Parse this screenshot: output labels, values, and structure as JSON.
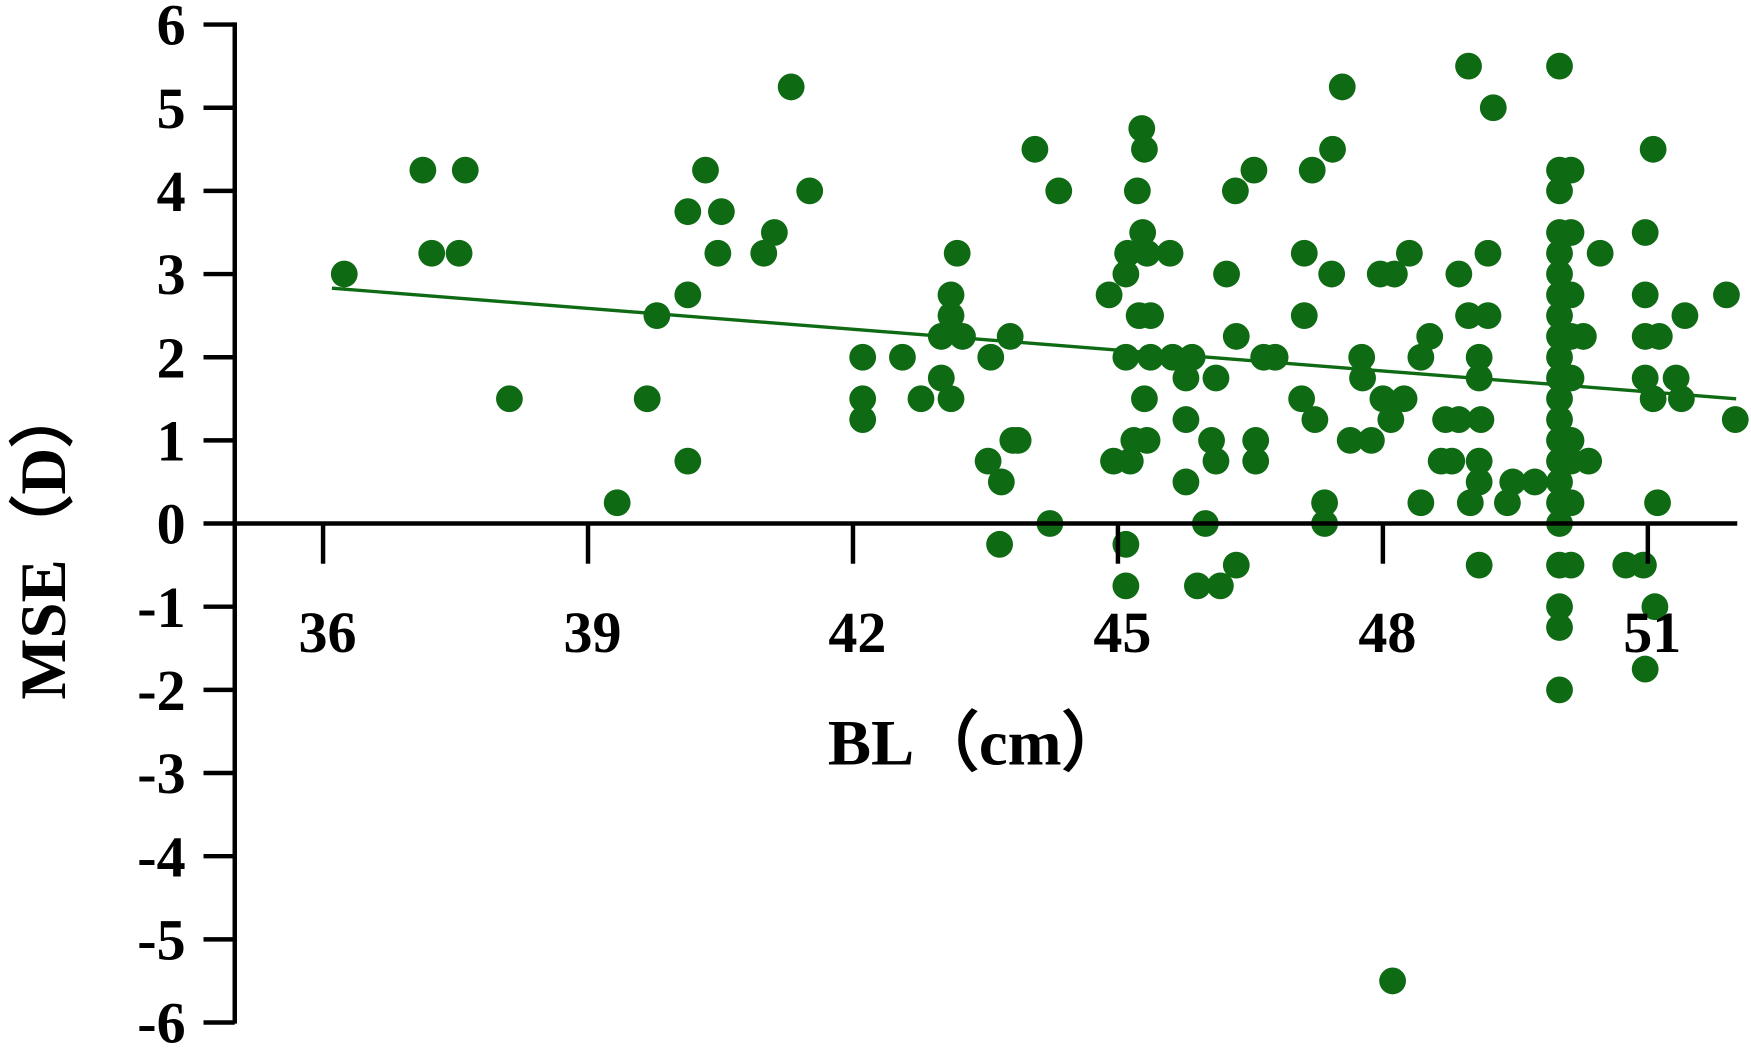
{
  "chart_data": {
    "type": "scatter",
    "x_label": "BL（cm）",
    "y_label": "MSE（D）",
    "xlim": [
      35,
      52
    ],
    "ylim": [
      -6,
      6
    ],
    "xticks": [
      36,
      39,
      42,
      45,
      48,
      51
    ],
    "yticks": [
      6,
      5,
      4,
      3,
      2,
      1,
      0,
      -1,
      -2,
      -3,
      -4,
      -5,
      -6
    ],
    "series": [
      {
        "mode": "markers",
        "color": "#0f6a14",
        "x": [
          36.24,
          37.13,
          37.23,
          37.54,
          37.61,
          38.11,
          39.33,
          39.67,
          39.78,
          40.13,
          40.13,
          40.13,
          40.33,
          40.47,
          40.51,
          40.99,
          41.11,
          41.3,
          41.51,
          42.11,
          42.11,
          42.11,
          42.56,
          42.77,
          43.0,
          43.0,
          43.11,
          43.11,
          43.11,
          43.18,
          43.24,
          43.56,
          43.66,
          43.53,
          43.68,
          43.78,
          43.81,
          43.87,
          44.06,
          44.23,
          44.33,
          44.9,
          44.95,
          45.09,
          45.09,
          45.09,
          45.11,
          45.14,
          45.18,
          45.09,
          45.22,
          45.27,
          45.3,
          45.28,
          45.33,
          45.24,
          45.37,
          45.3,
          45.33,
          45.37,
          45.59,
          45.62,
          45.77,
          45.77,
          45.77,
          45.84,
          45.9,
          45.99,
          46.06,
          46.11,
          46.11,
          46.16,
          46.23,
          46.33,
          46.34,
          46.34,
          46.54,
          46.56,
          46.56,
          46.65,
          46.78,
          47.08,
          47.11,
          47.11,
          47.2,
          47.23,
          47.34,
          47.34,
          47.43,
          47.42,
          47.54,
          47.63,
          47.76,
          47.77,
          47.87,
          47.97,
          48.0,
          48.09,
          48.13,
          48.11,
          48.24,
          48.3,
          48.43,
          48.43,
          48.53,
          48.66,
          48.71,
          48.78,
          48.86,
          48.86,
          48.97,
          48.97,
          48.99,
          49.09,
          49.09,
          49.11,
          49.09,
          49.09,
          49.09,
          49.19,
          49.19,
          49.25,
          49.41,
          49.47,
          49.72,
          50.0,
          50.0,
          50.0,
          50.0,
          50.0,
          50.0,
          50.0,
          50.0,
          50.0,
          50.0,
          50.0,
          50.0,
          50.0,
          50.0,
          50.0,
          50.0,
          50.0,
          50.0,
          50.0,
          50.0,
          50.0,
          50.0,
          50.13,
          50.13,
          50.13,
          50.13,
          50.13,
          50.13,
          50.13,
          50.13,
          50.13,
          50.27,
          50.33,
          50.46,
          50.75,
          50.95,
          50.97,
          50.97,
          50.97,
          50.97,
          50.97,
          51.06,
          51.06,
          51.11,
          51.08,
          51.13,
          51.32,
          51.38,
          51.42,
          51.89,
          51.99
        ],
        "values": [
          3.0,
          4.25,
          3.25,
          3.25,
          4.25,
          1.5,
          0.25,
          1.5,
          2.5,
          0.75,
          2.75,
          3.75,
          4.25,
          3.25,
          3.75,
          3.25,
          3.5,
          5.25,
          4.0,
          2.0,
          1.5,
          1.25,
          2.0,
          1.5,
          1.75,
          2.25,
          2.75,
          2.5,
          1.5,
          3.25,
          2.25,
          2.0,
          -0.25,
          0.75,
          0.5,
          2.25,
          1.0,
          1.0,
          4.5,
          0.0,
          4.0,
          2.75,
          0.75,
          -0.25,
          -0.75,
          3.0,
          3.25,
          0.75,
          1.0,
          2.0,
          4.0,
          4.75,
          4.5,
          3.5,
          3.25,
          2.5,
          2.5,
          1.5,
          1.0,
          2.0,
          3.25,
          2.0,
          1.75,
          1.25,
          0.5,
          2.0,
          -0.75,
          0.0,
          1.0,
          1.75,
          0.75,
          -0.75,
          3.0,
          4.0,
          2.25,
          -0.5,
          4.25,
          1.0,
          0.75,
          2.0,
          2.0,
          1.5,
          2.5,
          3.25,
          4.25,
          1.25,
          0.25,
          0.0,
          4.5,
          3.0,
          5.25,
          1.0,
          2.0,
          1.75,
          1.0,
          3.0,
          1.5,
          1.25,
          3.0,
          -5.5,
          1.5,
          3.25,
          2.0,
          0.25,
          2.25,
          0.75,
          1.25,
          0.75,
          3.0,
          1.25,
          5.5,
          2.5,
          0.25,
          2.0,
          1.75,
          1.25,
          0.75,
          0.5,
          -0.5,
          3.25,
          2.5,
          5.0,
          0.25,
          0.5,
          0.5,
          5.5,
          4.25,
          4.0,
          3.5,
          3.25,
          3.0,
          2.75,
          2.5,
          2.25,
          2.0,
          1.75,
          1.5,
          1.25,
          1.0,
          0.75,
          0.5,
          0.25,
          0.0,
          -0.5,
          -1.0,
          -1.25,
          -2.0,
          4.25,
          3.5,
          2.75,
          2.25,
          1.75,
          1.0,
          0.75,
          0.25,
          -0.5,
          2.25,
          0.75,
          3.25,
          -0.5,
          -0.5,
          3.5,
          2.75,
          2.25,
          1.75,
          -1.75,
          4.5,
          1.5,
          0.25,
          -1.0,
          2.25,
          1.75,
          1.5,
          2.5,
          2.75,
          1.25
        ]
      },
      {
        "mode": "line",
        "color": "#0f6a14",
        "x": [
          36.1,
          52
        ],
        "values": [
          2.83,
          1.5
        ]
      }
    ]
  }
}
